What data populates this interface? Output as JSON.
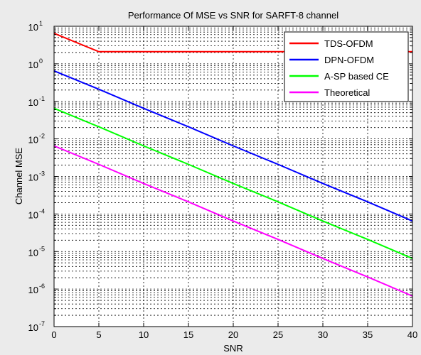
{
  "chart_data": {
    "type": "line",
    "title": "Performance Of MSE vs SNR for SARFT-8 channel",
    "xlabel": "SNR",
    "ylabel": "Channel MSE",
    "xscale": "linear",
    "yscale": "log",
    "xlim": [
      0,
      40
    ],
    "ylim_exponents": [
      -7,
      1
    ],
    "x_ticks": [
      0,
      5,
      10,
      15,
      20,
      25,
      30,
      35,
      40
    ],
    "y_tick_base": "10",
    "y_tick_exponents": [
      "1",
      "0",
      "-1",
      "-2",
      "-3",
      "-4",
      "-5",
      "-6",
      "-7"
    ],
    "grid": true,
    "legend_position": "top-right",
    "series": [
      {
        "name": "TDS-OFDM",
        "color": "#ff0000",
        "x": [
          0,
          5,
          10,
          15,
          20,
          25,
          30,
          35,
          40
        ],
        "y": [
          6.5,
          2.1,
          2.1,
          2.1,
          2.1,
          2.1,
          2.1,
          2.1,
          2.1
        ]
      },
      {
        "name": "DPN-OFDM",
        "color": "#0000ff",
        "x": [
          0,
          5,
          10,
          15,
          20,
          25,
          30,
          35,
          40
        ],
        "y": [
          0.65,
          0.21,
          0.065,
          0.021,
          0.0065,
          0.0021,
          0.00065,
          0.00021,
          6.5e-05
        ]
      },
      {
        "name": "A-SP based CE",
        "color": "#00ff00",
        "x": [
          0,
          5,
          10,
          15,
          20,
          25,
          30,
          35,
          40
        ],
        "y": [
          0.065,
          0.021,
          0.0065,
          0.0021,
          0.00065,
          0.00021,
          6.5e-05,
          2.1e-05,
          6.5e-06
        ]
      },
      {
        "name": "Theoretical",
        "color": "#ff00ff",
        "x": [
          0,
          5,
          10,
          15,
          20,
          25,
          30,
          35,
          40
        ],
        "y": [
          0.0065,
          0.0021,
          0.00065,
          0.00021,
          6.5e-05,
          2.1e-05,
          6.5e-06,
          2.1e-06,
          6.5e-07
        ]
      }
    ]
  }
}
